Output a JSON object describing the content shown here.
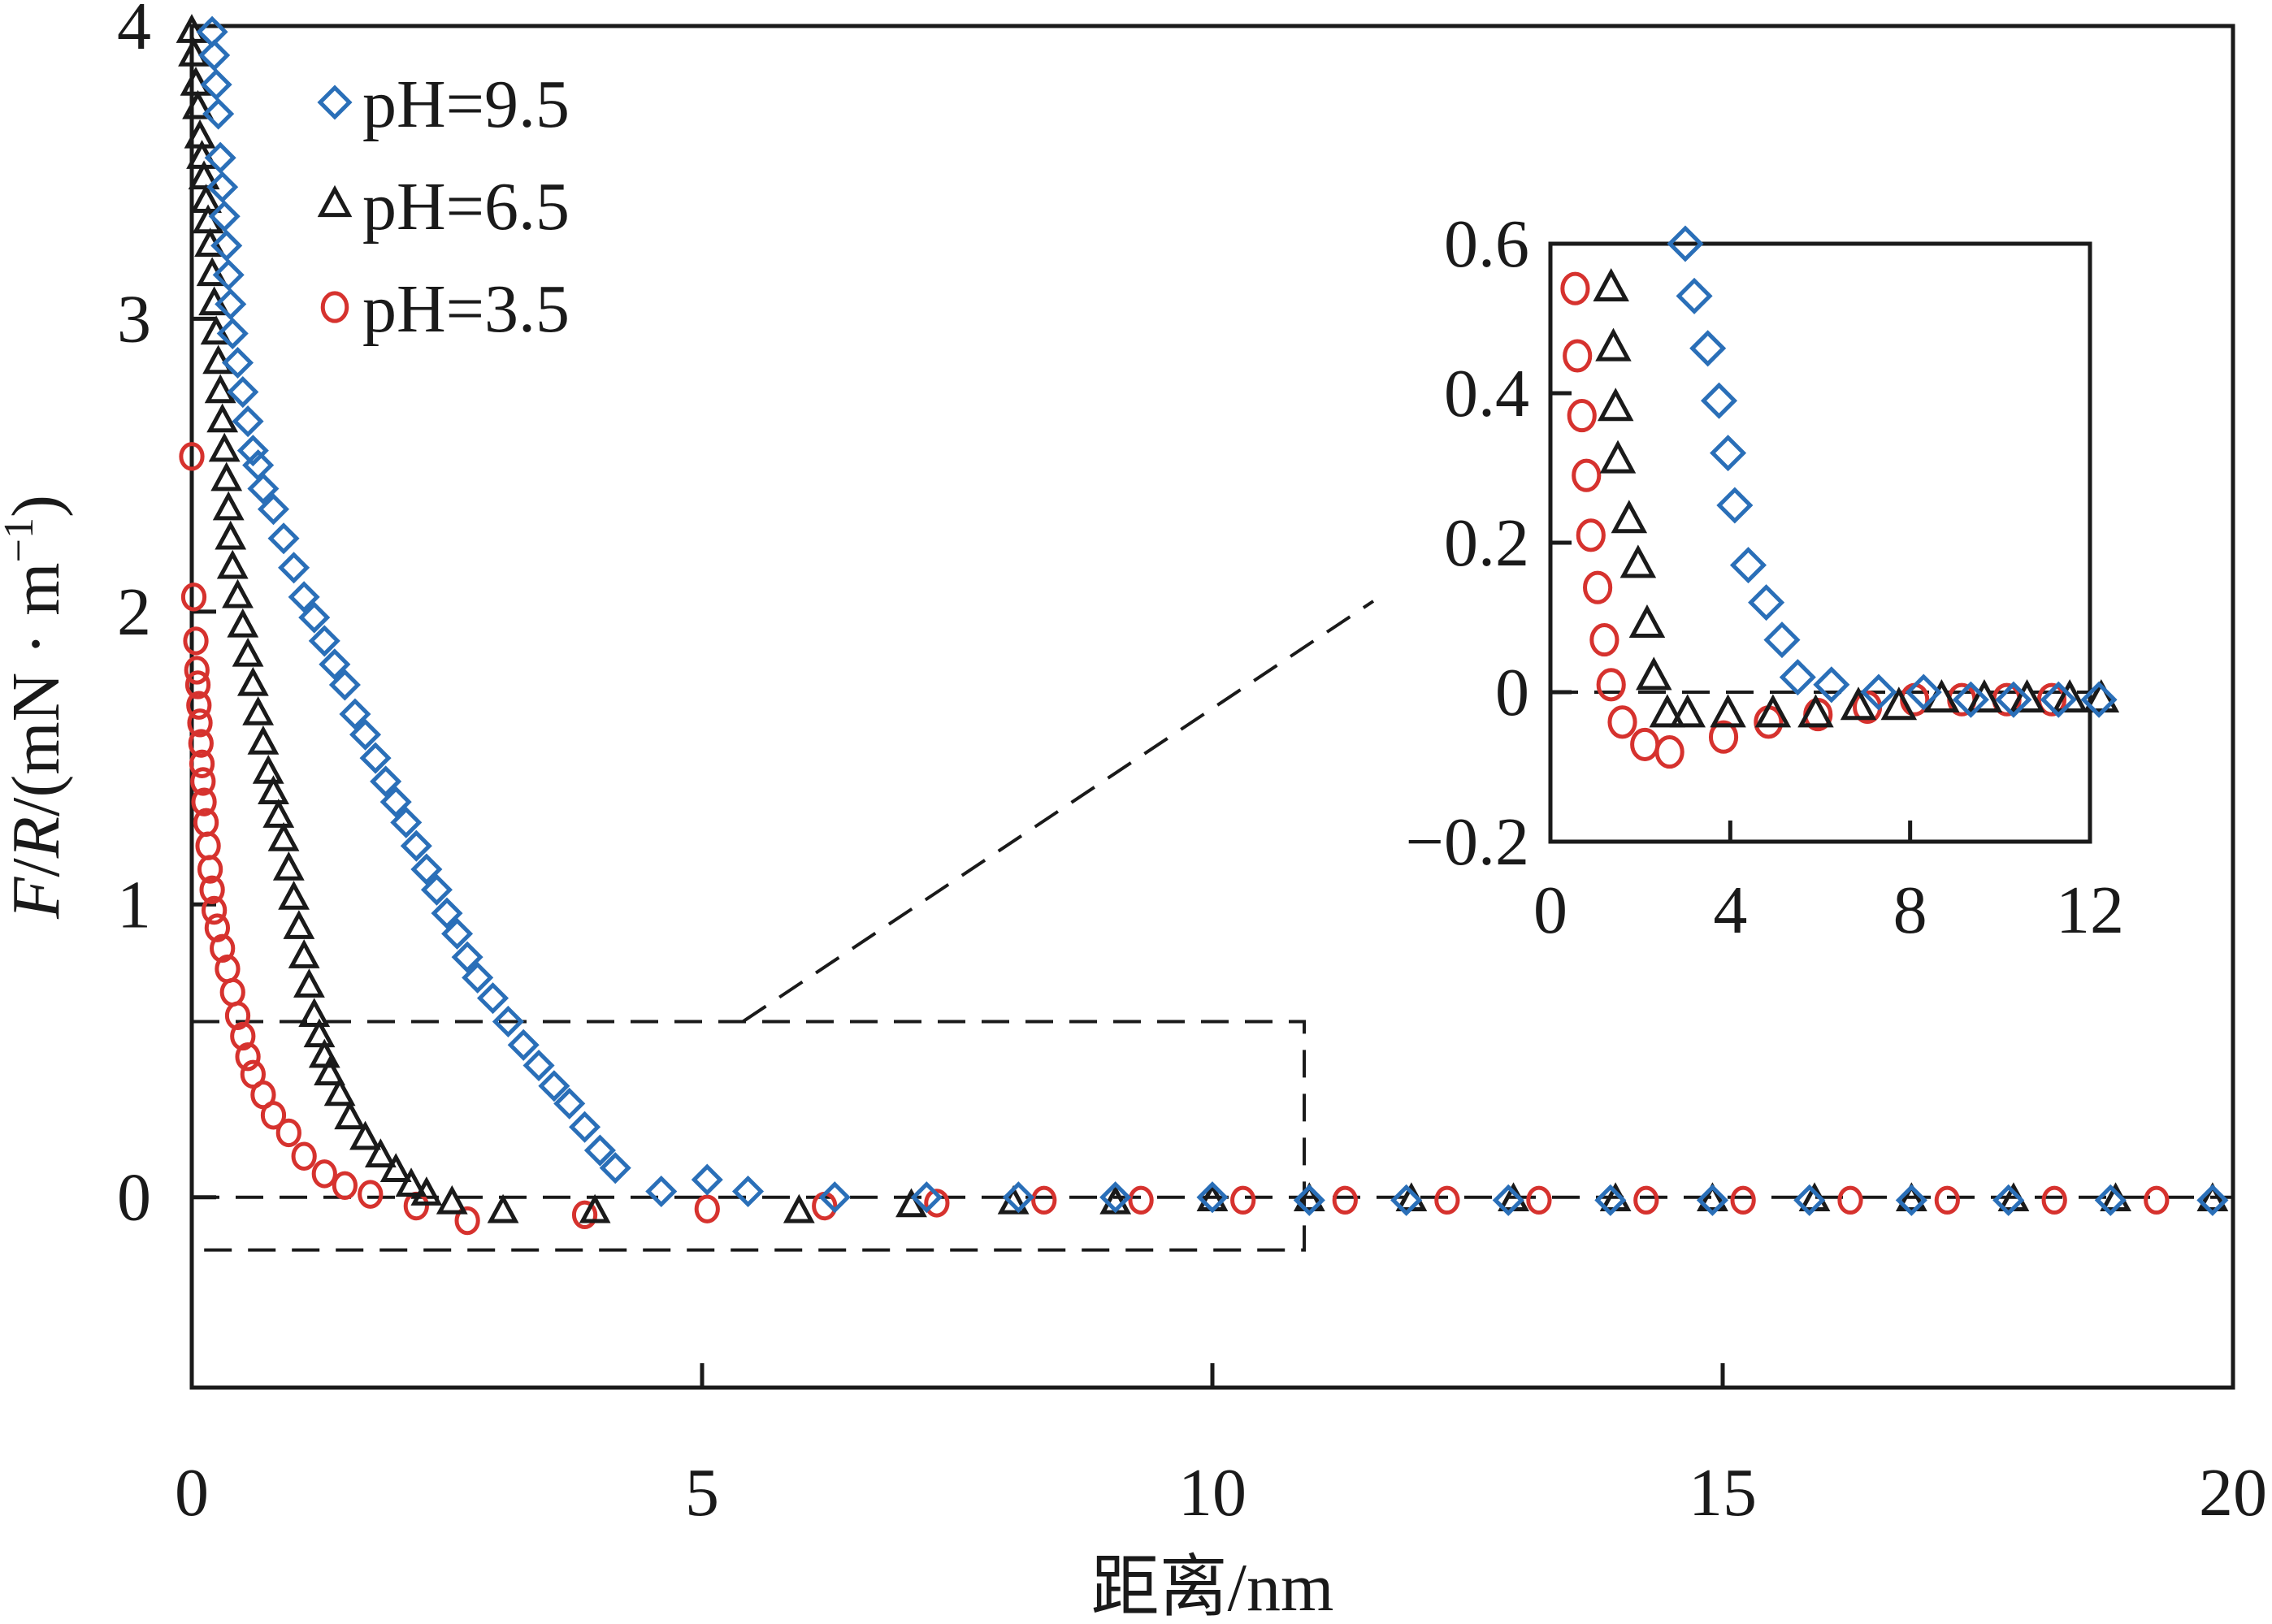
{
  "chart_data": {
    "type": "scatter",
    "xlabel": "距离/nm",
    "ylabel_parts": {
      "F": "F",
      "sep1": "/",
      "R": "R",
      "rest": "/(mN · m",
      "exp": "−1",
      "close": ")"
    },
    "xlim": [
      0,
      20
    ],
    "ylim": [
      -0.65,
      4
    ],
    "x_ticks": [
      0,
      5,
      10,
      15,
      20
    ],
    "x_tick_labels": [
      "0",
      "5",
      "10",
      "15",
      "20"
    ],
    "y_ticks": [
      0,
      1,
      2,
      3,
      4
    ],
    "y_tick_labels": [
      "0",
      "1",
      "2",
      "3",
      "4"
    ],
    "grid": false,
    "legend_position": "top-left",
    "zero_line": "dashed",
    "zoom_box": {
      "x_range": [
        0,
        10.9
      ],
      "y_range": [
        -0.18,
        0.6
      ],
      "style": "dashed"
    },
    "series": [
      {
        "name": "pH=9.5",
        "marker": "diamond",
        "color": "#2a6fb8",
        "x": [
          0.2,
          0.22,
          0.24,
          0.26,
          0.28,
          0.3,
          0.32,
          0.34,
          0.36,
          0.38,
          0.4,
          0.45,
          0.5,
          0.55,
          0.6,
          0.65,
          0.7,
          0.8,
          0.9,
          1.0,
          1.1,
          1.2,
          1.3,
          1.4,
          1.5,
          1.6,
          1.7,
          1.8,
          1.9,
          2.0,
          2.1,
          2.2,
          2.3,
          2.4,
          2.5,
          2.6,
          2.7,
          2.8,
          2.95,
          3.1,
          3.25,
          3.4,
          3.55,
          3.7,
          3.85,
          4.0,
          4.15,
          4.6,
          5.05,
          5.45,
          6.3,
          7.2,
          8.1,
          9.05,
          10.0,
          10.95,
          11.9,
          12.9,
          13.9,
          14.9,
          15.85,
          16.85,
          17.8,
          18.8,
          19.8
        ],
        "y": [
          3.98,
          3.9,
          3.8,
          3.7,
          3.55,
          3.45,
          3.35,
          3.25,
          3.15,
          3.05,
          2.95,
          2.85,
          2.75,
          2.65,
          2.55,
          2.5,
          2.42,
          2.35,
          2.25,
          2.15,
          2.05,
          1.98,
          1.9,
          1.82,
          1.75,
          1.65,
          1.58,
          1.5,
          1.42,
          1.35,
          1.28,
          1.2,
          1.12,
          1.05,
          0.97,
          0.9,
          0.82,
          0.75,
          0.68,
          0.6,
          0.52,
          0.45,
          0.38,
          0.32,
          0.24,
          0.16,
          0.1,
          0.02,
          0.06,
          0.02,
          0.0,
          0.0,
          0.0,
          0.0,
          0.0,
          -0.01,
          -0.01,
          -0.01,
          -0.01,
          -0.01,
          -0.01,
          -0.01,
          -0.01,
          -0.01,
          -0.01
        ]
      },
      {
        "name": "pH=6.5",
        "marker": "triangle",
        "color": "#1a1a1a",
        "x": [
          0.0,
          0.02,
          0.04,
          0.06,
          0.08,
          0.1,
          0.12,
          0.14,
          0.16,
          0.18,
          0.2,
          0.22,
          0.24,
          0.26,
          0.28,
          0.3,
          0.32,
          0.34,
          0.36,
          0.38,
          0.4,
          0.45,
          0.5,
          0.55,
          0.6,
          0.65,
          0.7,
          0.75,
          0.8,
          0.85,
          0.9,
          0.95,
          1.0,
          1.05,
          1.1,
          1.15,
          1.2,
          1.25,
          1.3,
          1.35,
          1.45,
          1.55,
          1.7,
          1.85,
          2.0,
          2.15,
          2.3,
          2.55,
          3.05,
          3.95,
          5.95,
          7.05,
          8.05,
          9.05,
          10.0,
          10.95,
          11.95,
          12.95,
          13.95,
          14.9,
          15.9,
          16.85,
          17.85,
          18.85,
          19.8
        ],
        "y": [
          3.98,
          3.9,
          3.8,
          3.72,
          3.62,
          3.55,
          3.48,
          3.4,
          3.33,
          3.25,
          3.15,
          3.05,
          2.95,
          2.85,
          2.75,
          2.65,
          2.55,
          2.45,
          2.35,
          2.25,
          2.15,
          2.05,
          1.95,
          1.85,
          1.75,
          1.65,
          1.55,
          1.45,
          1.38,
          1.3,
          1.22,
          1.12,
          1.02,
          0.92,
          0.82,
          0.72,
          0.62,
          0.55,
          0.48,
          0.42,
          0.35,
          0.27,
          0.2,
          0.14,
          0.09,
          0.04,
          0.01,
          -0.02,
          -0.05,
          -0.05,
          -0.05,
          -0.03,
          -0.02,
          -0.02,
          -0.01,
          -0.01,
          -0.01,
          -0.01,
          -0.01,
          -0.01,
          -0.01,
          -0.01,
          -0.01,
          -0.01,
          -0.01
        ]
      },
      {
        "name": "pH=3.5",
        "marker": "circle",
        "color": "#d6322e",
        "x": [
          0.0,
          0.02,
          0.04,
          0.05,
          0.06,
          0.07,
          0.08,
          0.09,
          0.1,
          0.11,
          0.12,
          0.14,
          0.16,
          0.18,
          0.2,
          0.22,
          0.25,
          0.3,
          0.35,
          0.4,
          0.45,
          0.5,
          0.55,
          0.6,
          0.7,
          0.8,
          0.95,
          1.1,
          1.3,
          1.5,
          1.75,
          2.2,
          2.7,
          3.85,
          5.05,
          6.2,
          7.3,
          8.35,
          9.3,
          10.3,
          11.3,
          12.3,
          13.2,
          14.25,
          15.2,
          16.25,
          17.2,
          18.25,
          19.25
        ],
        "y": [
          2.53,
          2.05,
          1.9,
          1.8,
          1.75,
          1.68,
          1.62,
          1.55,
          1.48,
          1.42,
          1.35,
          1.28,
          1.2,
          1.12,
          1.05,
          0.98,
          0.92,
          0.85,
          0.78,
          0.7,
          0.62,
          0.55,
          0.48,
          0.42,
          0.35,
          0.28,
          0.22,
          0.14,
          0.08,
          0.04,
          0.01,
          -0.03,
          -0.08,
          -0.06,
          -0.04,
          -0.03,
          -0.02,
          -0.01,
          -0.01,
          -0.01,
          -0.01,
          -0.01,
          -0.01,
          -0.01,
          -0.01,
          -0.01,
          -0.01,
          -0.01,
          -0.01
        ]
      }
    ],
    "inset": {
      "xlim": [
        0,
        12
      ],
      "ylim": [
        -0.2,
        0.6
      ],
      "x_ticks": [
        0,
        4,
        8,
        12
      ],
      "x_tick_labels": [
        "0",
        "4",
        "8",
        "12"
      ],
      "y_ticks": [
        -0.2,
        0,
        0.2,
        0.4,
        0.6
      ],
      "y_tick_labels": [
        "−0.2",
        "0",
        "0.2",
        "0.4",
        "0.6"
      ],
      "zero_line": "dashed",
      "series": [
        {
          "name": "pH=9.5",
          "x": [
            3.0,
            3.2,
            3.5,
            3.75,
            3.95,
            4.1,
            4.4,
            4.8,
            5.15,
            5.5,
            6.25,
            7.3,
            8.3,
            9.35,
            10.3,
            11.3,
            12.2
          ],
          "y": [
            0.6,
            0.53,
            0.46,
            0.39,
            0.32,
            0.25,
            0.17,
            0.12,
            0.07,
            0.02,
            0.01,
            0.0,
            0.0,
            -0.01,
            -0.01,
            -0.01,
            -0.01
          ]
        },
        {
          "name": "pH=6.5",
          "x": [
            1.35,
            1.4,
            1.45,
            1.5,
            1.75,
            1.95,
            2.15,
            2.3,
            2.6,
            3.05,
            3.95,
            4.95,
            5.9,
            6.85,
            7.75,
            8.7,
            9.65,
            10.6,
            11.55,
            12.25
          ],
          "y": [
            0.54,
            0.46,
            0.38,
            0.31,
            0.23,
            0.17,
            0.09,
            0.02,
            -0.03,
            -0.03,
            -0.03,
            -0.03,
            -0.03,
            -0.02,
            -0.02,
            -0.01,
            -0.01,
            -0.01,
            -0.01,
            -0.01
          ]
        },
        {
          "name": "pH=3.5",
          "x": [
            0.55,
            0.6,
            0.7,
            0.8,
            0.9,
            1.05,
            1.2,
            1.35,
            1.6,
            2.1,
            2.65,
            3.85,
            4.85,
            5.95,
            7.05,
            8.1,
            9.15,
            10.15,
            11.15
          ],
          "y": [
            0.54,
            0.45,
            0.37,
            0.29,
            0.21,
            0.14,
            0.07,
            0.01,
            -0.04,
            -0.07,
            -0.08,
            -0.06,
            -0.04,
            -0.03,
            -0.02,
            -0.01,
            -0.01,
            -0.01,
            -0.01
          ]
        }
      ]
    }
  }
}
